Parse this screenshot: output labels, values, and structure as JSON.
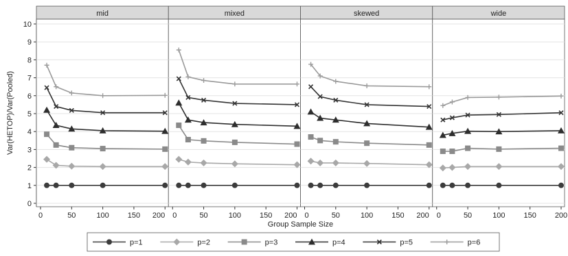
{
  "chart_data": {
    "type": "line",
    "facets": [
      "mid",
      "mixed",
      "skewed",
      "wide"
    ],
    "x": [
      10,
      25,
      50,
      100,
      200
    ],
    "xlim": [
      0,
      200
    ],
    "xticks": [
      0,
      50,
      100,
      150,
      200
    ],
    "ylim": [
      0,
      10
    ],
    "yticks": [
      0,
      1,
      2,
      3,
      4,
      5,
      6,
      7,
      8,
      9,
      10
    ],
    "xlabel": "Group Sample Size",
    "ylabel": "Var(HETOP)/Var(Pooled)",
    "grid": "horizontal",
    "legend_position": "bottom",
    "series": [
      {
        "name": "p=1",
        "marker": "circle",
        "color": "#3c3c3c",
        "values": {
          "mid": [
            1.0,
            1.0,
            1.0,
            1.0,
            1.0
          ],
          "mixed": [
            1.0,
            1.0,
            1.0,
            1.0,
            1.0
          ],
          "skewed": [
            1.0,
            1.0,
            1.0,
            1.0,
            1.0
          ],
          "wide": [
            1.0,
            1.0,
            1.0,
            1.0,
            1.0
          ]
        }
      },
      {
        "name": "p=2",
        "marker": "diamond",
        "color": "#a8a8a8",
        "values": {
          "mid": [
            2.45,
            2.12,
            2.07,
            2.05,
            2.05
          ],
          "mixed": [
            2.45,
            2.3,
            2.25,
            2.2,
            2.15
          ],
          "skewed": [
            2.35,
            2.25,
            2.25,
            2.22,
            2.15
          ],
          "wide": [
            1.97,
            2.0,
            2.05,
            2.05,
            2.05
          ]
        }
      },
      {
        "name": "p=3",
        "marker": "square",
        "color": "#8a8a8a",
        "values": {
          "mid": [
            3.85,
            3.25,
            3.1,
            3.05,
            3.02
          ],
          "mixed": [
            4.35,
            3.55,
            3.48,
            3.4,
            3.3
          ],
          "skewed": [
            3.7,
            3.5,
            3.43,
            3.35,
            3.25
          ],
          "wide": [
            2.9,
            2.9,
            3.07,
            3.02,
            3.07
          ]
        }
      },
      {
        "name": "p=4",
        "marker": "triangle",
        "color": "#2e2e2e",
        "values": {
          "mid": [
            5.2,
            4.35,
            4.15,
            4.05,
            4.02
          ],
          "mixed": [
            5.6,
            4.65,
            4.5,
            4.4,
            4.3
          ],
          "skewed": [
            5.1,
            4.75,
            4.65,
            4.45,
            4.25
          ],
          "wide": [
            3.8,
            3.9,
            4.02,
            4.0,
            4.05
          ]
        }
      },
      {
        "name": "p=5",
        "marker": "x",
        "color": "#333333",
        "values": {
          "mid": [
            6.45,
            5.4,
            5.18,
            5.05,
            5.05
          ],
          "mixed": [
            6.95,
            5.9,
            5.75,
            5.57,
            5.5
          ],
          "skewed": [
            6.5,
            5.95,
            5.75,
            5.5,
            5.4
          ],
          "wide": [
            4.65,
            4.77,
            4.92,
            4.95,
            5.05
          ]
        }
      },
      {
        "name": "p=6",
        "marker": "plus",
        "color": "#9a9a9a",
        "values": {
          "mid": [
            7.7,
            6.5,
            6.15,
            6.0,
            6.02
          ],
          "mixed": [
            8.55,
            7.05,
            6.85,
            6.65,
            6.65
          ],
          "skewed": [
            7.75,
            7.1,
            6.8,
            6.55,
            6.5
          ],
          "wide": [
            5.45,
            5.65,
            5.9,
            5.92,
            5.98
          ]
        }
      }
    ]
  }
}
